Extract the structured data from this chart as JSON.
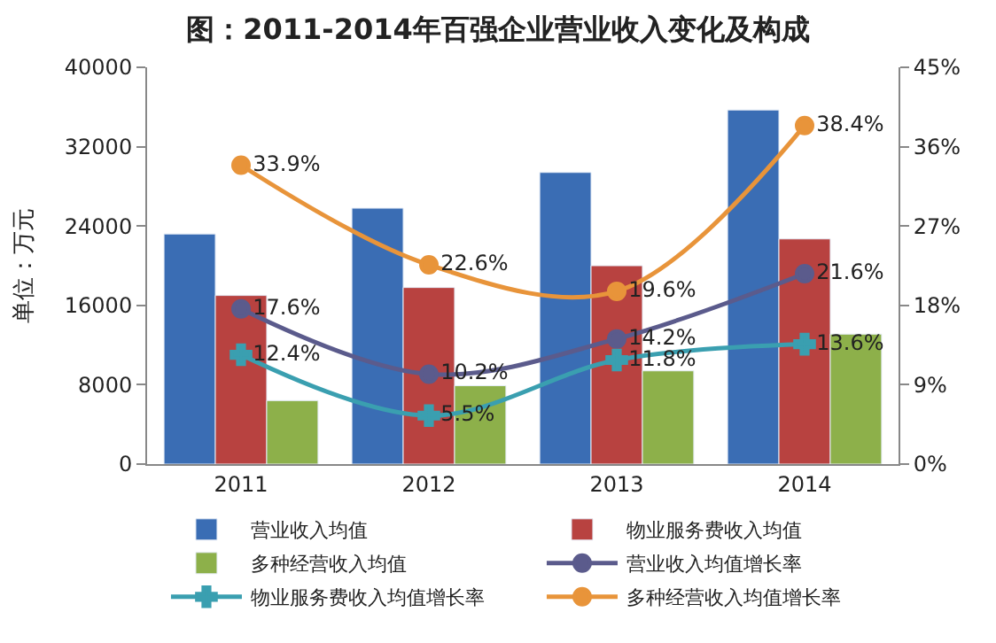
{
  "chart_data": {
    "type": "bar",
    "title": "图：2011-2014年百强企业营业收入变化及构成",
    "ylabel": "单位：万元",
    "categories": [
      "2011",
      "2012",
      "2013",
      "2014"
    ],
    "series": [
      {
        "name": "营业收入均值",
        "color": "#3a6db4",
        "values": [
          23200,
          25800,
          29400,
          35700
        ]
      },
      {
        "name": "物业服务费收入均值",
        "color": "#b84240",
        "values": [
          17000,
          17800,
          20000,
          22700
        ]
      },
      {
        "name": "多种经营收入均值",
        "color": "#8db04a",
        "values": [
          6400,
          7900,
          9400,
          13100
        ]
      },
      {
        "name": "营业收入均值增长率",
        "type": "line",
        "axis": "y2",
        "color": "#5b5b8c",
        "marker": "circle",
        "values": [
          17.6,
          10.2,
          14.2,
          21.6
        ],
        "value_labels": [
          "17.6%",
          "10.2%",
          "14.2%",
          "21.6%"
        ]
      },
      {
        "name": "物业服务费收入均值增长率",
        "type": "line",
        "axis": "y2",
        "color": "#3a9fb0",
        "marker": "cross",
        "values": [
          12.4,
          5.5,
          11.8,
          13.6
        ],
        "value_labels": [
          "12.4%",
          "5.5%",
          "11.8%",
          "13.6%"
        ]
      },
      {
        "name": "多种经营收入均值增长率",
        "type": "line",
        "axis": "y2",
        "color": "#e8943a",
        "marker": "circle",
        "values": [
          33.9,
          22.6,
          19.6,
          38.4
        ],
        "value_labels": [
          "33.9%",
          "22.6%",
          "19.6%",
          "38.4%"
        ]
      }
    ],
    "ylim": [
      0,
      40000
    ],
    "yticks": [
      0,
      8000,
      16000,
      24000,
      32000,
      40000
    ],
    "y2lim": [
      0,
      45
    ],
    "y2ticks": [
      {
        "value": 0,
        "label": "0%"
      },
      {
        "value": 9,
        "label": "9%"
      },
      {
        "value": 18,
        "label": "18%"
      },
      {
        "value": 27,
        "label": "27%"
      },
      {
        "value": 36,
        "label": "36%"
      },
      {
        "value": 45,
        "label": "45%"
      }
    ],
    "legend": "bottom"
  }
}
